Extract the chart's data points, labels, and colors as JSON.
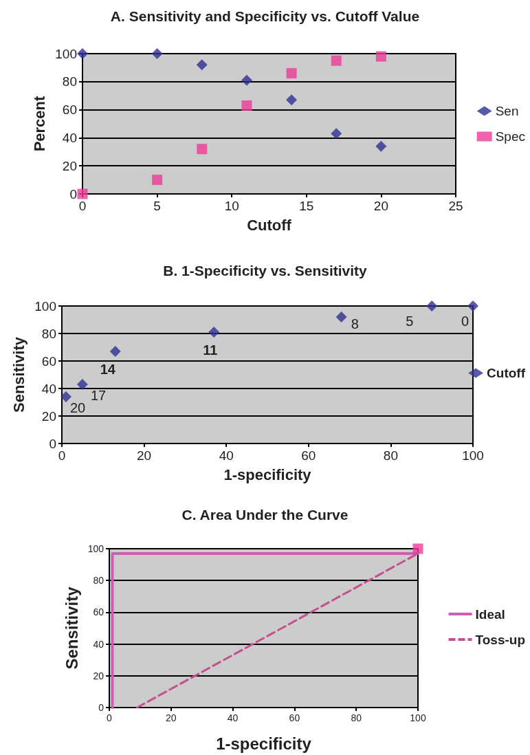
{
  "chart_data": [
    {
      "type": "scatter",
      "title": "A. Sensitivity and Specificity vs. Cutoff Value",
      "xlabel": "Cutoff",
      "ylabel": "Percent",
      "x": [
        0,
        5,
        8,
        11,
        14,
        17,
        20
      ],
      "series": [
        {
          "name": "Sen",
          "color": "#2e3192",
          "marker": "diamond",
          "values": [
            100,
            100,
            92,
            81,
            67,
            43,
            34
          ]
        },
        {
          "name": "Spec",
          "color": "#ec3b96",
          "marker": "square",
          "values": [
            0,
            10,
            32,
            63,
            86,
            95,
            98
          ]
        }
      ],
      "xlim": [
        0,
        25
      ],
      "xticks": [
        0,
        5,
        10,
        15,
        20,
        25
      ],
      "ylim": [
        0,
        100
      ],
      "yticks": [
        0,
        20,
        40,
        60,
        80,
        100
      ],
      "grid": "y",
      "legend": "right"
    },
    {
      "type": "scatter",
      "title": "B. 1-Specificity vs. Sensitivity",
      "xlabel": "1-specificity",
      "ylabel": "Sensitivity",
      "series": [
        {
          "name": "Cutoff",
          "color": "#2e3192",
          "marker": "diamond",
          "x": [
            100,
            90,
            68,
            37,
            13,
            5,
            1
          ],
          "values": [
            100,
            100,
            92,
            81,
            67,
            43,
            34
          ]
        }
      ],
      "annotations": [
        {
          "text": "0",
          "x": 100,
          "y": 100
        },
        {
          "text": "5",
          "x": 90,
          "y": 100
        },
        {
          "text": "8",
          "x": 68,
          "y": 92
        },
        {
          "text": "11",
          "x": 37,
          "y": 81
        },
        {
          "text": "14",
          "x": 13,
          "y": 67
        },
        {
          "text": "17",
          "x": 5,
          "y": 43
        },
        {
          "text": "20",
          "x": 1,
          "y": 34
        }
      ],
      "xlim": [
        0,
        100
      ],
      "xticks": [
        0,
        20,
        40,
        60,
        80,
        100
      ],
      "ylim": [
        0,
        100
      ],
      "yticks": [
        0,
        20,
        40,
        60,
        80,
        100
      ],
      "grid": "y",
      "legend": "right"
    },
    {
      "type": "line",
      "title": "C. Area Under the Curve",
      "xlabel": "1-specificity",
      "ylabel": "Sensitivity",
      "series": [
        {
          "name": "Ideal",
          "color": "#cc5fb4",
          "line_style": "solid",
          "marker": "none",
          "x": [
            1,
            1,
            100
          ],
          "values": [
            0,
            97,
            97
          ]
        },
        {
          "name": "Toss-up",
          "color": "#c4508f",
          "line_style": "dashed",
          "marker": "none",
          "x": [
            9,
            100
          ],
          "values": [
            0,
            97
          ]
        },
        {
          "type": "scatter",
          "color": "#ec3b96",
          "marker": "square",
          "x": [
            100
          ],
          "values": [
            100
          ]
        }
      ],
      "xlim": [
        0,
        100
      ],
      "xticks": [
        0,
        20,
        40,
        60,
        80,
        100
      ],
      "ylim": [
        0,
        100
      ],
      "yticks": [
        0,
        20,
        40,
        60,
        80,
        100
      ],
      "grid": "y",
      "legend": "right"
    }
  ]
}
